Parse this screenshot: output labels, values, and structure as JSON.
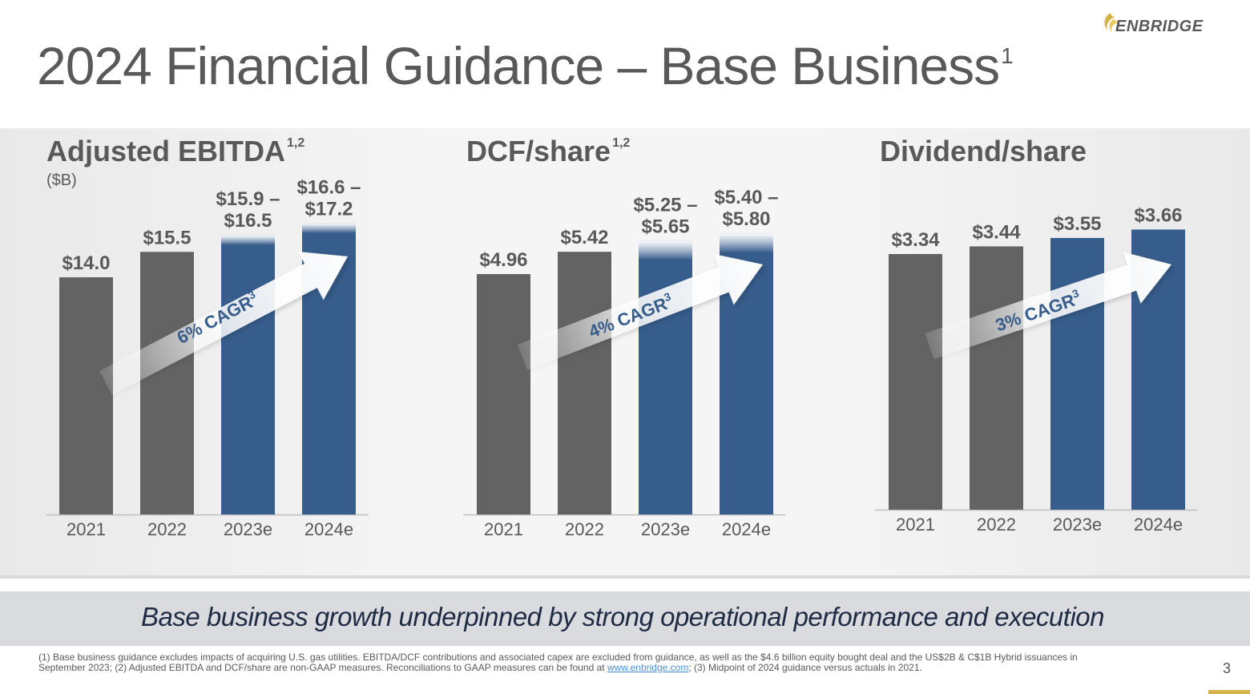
{
  "header": {
    "title": "2024 Financial Guidance – Base Business",
    "title_sup": "1",
    "logo_text": "ENBRIDGE"
  },
  "colors": {
    "actual": "#636363",
    "estimate": "#375d8c",
    "text": "#595959",
    "tagline": "#1f2a44"
  },
  "chart_data": [
    {
      "type": "bar",
      "title": "Adjusted EBITDA",
      "title_sup": "1,2",
      "unit": "($B)",
      "categories": [
        "2021",
        "2022",
        "2023e",
        "2024e"
      ],
      "values": [
        14.0,
        15.5,
        16.2,
        16.9
      ],
      "ranges": [
        null,
        null,
        [
          15.9,
          16.5
        ],
        [
          16.6,
          17.2
        ]
      ],
      "labels": [
        [
          "$14.0"
        ],
        [
          "$15.5"
        ],
        [
          "$15.9 –",
          "$16.5"
        ],
        [
          "$16.6 –",
          "$17.2"
        ]
      ],
      "estimate": [
        false,
        false,
        true,
        true
      ],
      "cagr_label": "6% CAGR",
      "cagr_sup": "3"
    },
    {
      "type": "bar",
      "title": "DCF/share",
      "title_sup": "1,2",
      "unit": "",
      "categories": [
        "2021",
        "2022",
        "2023e",
        "2024e"
      ],
      "values": [
        4.96,
        5.42,
        5.45,
        5.6
      ],
      "ranges": [
        null,
        null,
        [
          5.25,
          5.65
        ],
        [
          5.4,
          5.8
        ]
      ],
      "labels": [
        [
          "$4.96"
        ],
        [
          "$5.42"
        ],
        [
          "$5.25 –",
          "$5.65"
        ],
        [
          "$5.40 –",
          "$5.80"
        ]
      ],
      "estimate": [
        false,
        false,
        true,
        true
      ],
      "cagr_label": "4% CAGR",
      "cagr_sup": "3"
    },
    {
      "type": "bar",
      "title": "Dividend/share",
      "title_sup": "",
      "unit": "",
      "categories": [
        "2021",
        "2022",
        "2023e",
        "2024e"
      ],
      "values": [
        3.34,
        3.44,
        3.55,
        3.66
      ],
      "ranges": [
        null,
        null,
        null,
        null
      ],
      "labels": [
        [
          "$3.34"
        ],
        [
          "$3.44"
        ],
        [
          "$3.55"
        ],
        [
          "$3.66"
        ]
      ],
      "estimate": [
        false,
        false,
        true,
        true
      ],
      "cagr_label": "3% CAGR",
      "cagr_sup": "3"
    }
  ],
  "tagline": "Base business growth underpinned by strong operational performance and execution",
  "footnote": {
    "part1": "(1) Base business guidance excludes impacts of acquiring U.S. gas utilities. EBITDA/DCF contributions and associated capex are excluded from guidance, as well as the $4.6 billion equity bought deal and the US$2B & C$1B Hybrid issuances in September 2023; (2) Adjusted EBITDA and DCF/share are non-GAAP measures. Reconciliations to GAAP measures can be found at ",
    "link": "www.enbridge.com",
    "part2": "; (3) Midpoint of 2024 guidance versus actuals in 2021."
  },
  "page_number": "3"
}
